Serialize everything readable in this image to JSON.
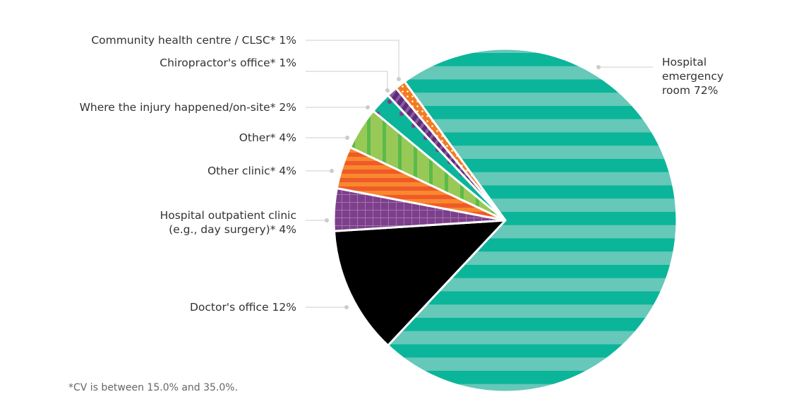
{
  "chart_data": {
    "type": "pie",
    "start_angle_deg": -36,
    "direction": "clockwise",
    "slices": [
      {
        "label": "Hospital\nemergency\nroom",
        "value": 72,
        "pattern": "horizontal-stripes",
        "colors": [
          "#0bb59a",
          "#66c8b8"
        ]
      },
      {
        "label": "Doctor's office",
        "value": 12,
        "pattern": "solid",
        "colors": [
          "#000000"
        ]
      },
      {
        "label": "Hospital outpatient clinic\n(e.g., day surgery)*",
        "value": 4,
        "pattern": "grid",
        "colors": [
          "#7d3f8c",
          "#a173ad"
        ]
      },
      {
        "label": "Other clinic*",
        "value": 4,
        "pattern": "horizontal-stripes",
        "colors": [
          "#f05a28",
          "#f7892f"
        ]
      },
      {
        "label": "Other*",
        "value": 4,
        "pattern": "vertical-stripes",
        "colors": [
          "#98c957",
          "#5bbb4a"
        ]
      },
      {
        "label": "Where the injury happened/on-site*",
        "value": 2,
        "pattern": "dots",
        "colors": [
          "#0bb59a",
          "#7d3f8c"
        ]
      },
      {
        "label": "Chiropractor's office*",
        "value": 1,
        "pattern": "diagonal-stripes",
        "colors": [
          "#5e2b7a",
          "#8a59a0"
        ]
      },
      {
        "label": "Community health centre / CLSC*",
        "value": 1,
        "pattern": "dots",
        "colors": [
          "#f47b20",
          "#ffffff"
        ]
      }
    ],
    "footnote": "*CV is between 15.0% and 35.0%."
  }
}
